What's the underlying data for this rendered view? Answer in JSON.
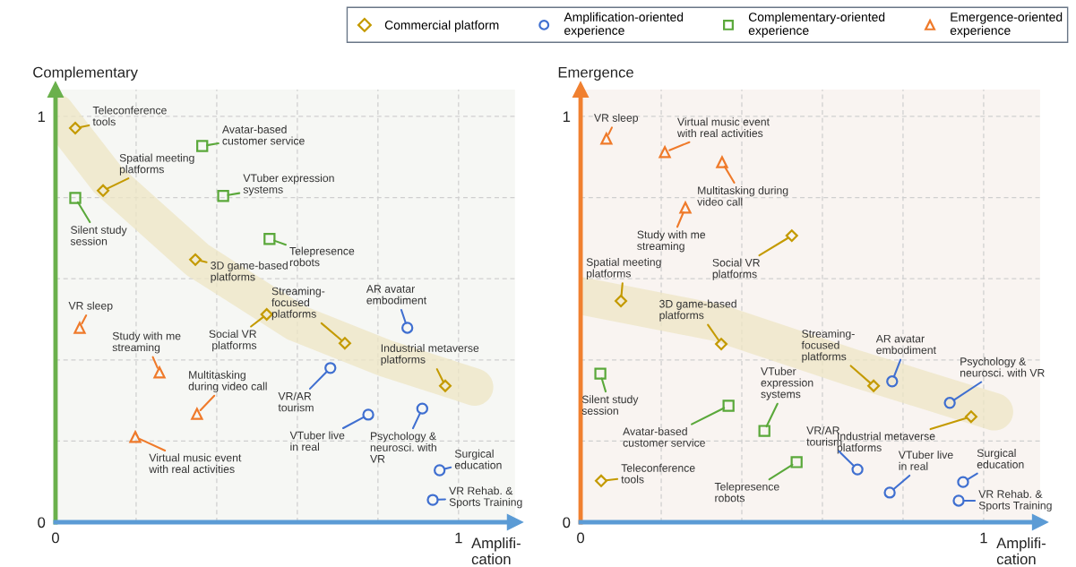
{
  "chart_data": [
    {
      "type": "scatter",
      "ylabel": "Complementary",
      "xlabel": "Amplifi-\ncation",
      "xlim": [
        0,
        1.14
      ],
      "ylim": [
        0,
        1.066
      ],
      "xticks": [
        0,
        {
          "value": 0.2,
          "label": null
        },
        {
          "value": 0.4,
          "label": null
        },
        {
          "value": 0.6,
          "label": null
        },
        {
          "value": 0.8,
          "label": null
        },
        1
      ],
      "yticks": [
        0,
        {
          "value": 0.2,
          "label": null
        },
        {
          "value": 0.4,
          "label": null
        },
        {
          "value": 0.6,
          "label": null
        },
        {
          "value": 0.8,
          "label": null
        },
        1
      ],
      "grid": true,
      "legend": "top right",
      "series": [
        {
          "type": "line",
          "color": "#ede5c4",
          "marker": "none",
          "x": [
            0,
            0.129,
            0.351,
            0.596,
            0.818,
            1.04
          ],
          "values": [
            1.01,
            0.845,
            0.647,
            0.492,
            0.404,
            0.333
          ]
        },
        {
          "name": "Commercial platform",
          "color": "#c49a00",
          "marker": "diamond",
          "x": [
            0.049,
            0.118,
            0.347,
            0.524,
            0.718,
            0.967
          ],
          "values": [
            0.971,
            0.817,
            0.647,
            0.512,
            0.441,
            0.336
          ]
        },
        {
          "name": "Amplification-oriented\nexperience",
          "color": "#3f6fd0",
          "marker": "circle",
          "x": [
            0.873,
            0.682,
            0.776,
            0.91,
            0.953,
            0.936
          ],
          "values": [
            0.479,
            0.38,
            0.265,
            0.28,
            0.128,
            0.055
          ]
        },
        {
          "name": "Complementary-oriented\nexperience",
          "color": "#5aa83a",
          "marker": "square",
          "x": [
            0.364,
            0.416,
            0.049,
            0.531
          ],
          "values": [
            0.927,
            0.804,
            0.799,
            0.698
          ]
        },
        {
          "name": "Emergence-oriented\nexperience",
          "color": "#ef7a2a",
          "marker": "triangle",
          "x": [
            0.06,
            0.258,
            0.351,
            0.198
          ],
          "values": [
            0.479,
            0.369,
            0.267,
            0.21
          ]
        }
      ],
      "annotations": [
        {
          "text": "Teleconference\ntools",
          "x": 0.049,
          "y": 0.971
        },
        {
          "text": "Spatial meeting\nplatforms",
          "x": 0.118,
          "y": 0.817
        },
        {
          "text": "3D game-based\nplatforms",
          "x": 0.347,
          "y": 0.647
        },
        {
          "text": "Social VR\nplatforms",
          "x": 0.524,
          "y": 0.512
        },
        {
          "text": "Streaming-\nfocused\nplatforms",
          "x": 0.718,
          "y": 0.441
        },
        {
          "text": "Industrial metaverse\nplatforms",
          "x": 0.967,
          "y": 0.336
        },
        {
          "text": "AR avatar\nembodiment",
          "x": 0.873,
          "y": 0.479
        },
        {
          "text": "VR/AR\ntourism",
          "x": 0.682,
          "y": 0.38
        },
        {
          "text": "VTuber live\nin real",
          "x": 0.776,
          "y": 0.265
        },
        {
          "text": "Psychology &\nneurosci. with\nVR",
          "x": 0.91,
          "y": 0.28
        },
        {
          "text": "Surgical\neducation",
          "x": 0.953,
          "y": 0.128
        },
        {
          "text": "VR Rehab. &\nSports Training",
          "x": 0.936,
          "y": 0.055
        },
        {
          "text": "Avatar-based\ncustomer service",
          "x": 0.364,
          "y": 0.927
        },
        {
          "text": "VTuber expression\nsystems",
          "x": 0.416,
          "y": 0.804
        },
        {
          "text": "Silent study\nsession",
          "x": 0.049,
          "y": 0.799
        },
        {
          "text": "Telepresence\nrobots",
          "x": 0.531,
          "y": 0.698
        },
        {
          "text": "VR sleep",
          "x": 0.06,
          "y": 0.479
        },
        {
          "text": "Study with me\nstreaming",
          "x": 0.258,
          "y": 0.369
        },
        {
          "text": "Multitasking\nduring video call",
          "x": 0.351,
          "y": 0.267
        },
        {
          "text": "Virtual music event\nwith real activities",
          "x": 0.198,
          "y": 0.21
        }
      ]
    },
    {
      "type": "scatter",
      "ylabel": "Emergence",
      "xlabel": "Amplifi-\ncation",
      "xlim": [
        0,
        1.14
      ],
      "ylim": [
        0,
        1.066
      ],
      "xticks": [
        0,
        {
          "value": 0.2,
          "label": null
        },
        {
          "value": 0.4,
          "label": null
        },
        {
          "value": 0.6,
          "label": null
        },
        {
          "value": 0.8,
          "label": null
        },
        1
      ],
      "yticks": [
        0,
        {
          "value": 0.2,
          "label": null
        },
        {
          "value": 0.4,
          "label": null
        },
        {
          "value": 0.6,
          "label": null
        },
        {
          "value": 0.8,
          "label": null
        },
        1
      ],
      "grid": true,
      "series": [
        {
          "type": "line",
          "color": "#ede5c4",
          "marker": "none",
          "x": [
            0,
            0.338,
            0.671,
            1.027
          ],
          "values": [
            0.558,
            0.492,
            0.382,
            0.272
          ]
        },
        {
          "color": "#c49a00",
          "marker": "diamond",
          "x": [
            0.524,
            0.1,
            0.349,
            0.727,
            0.969,
            0.051
          ],
          "values": [
            0.706,
            0.545,
            0.439,
            0.336,
            0.26,
            0.102
          ]
        },
        {
          "color": "#3f6fd0",
          "marker": "circle",
          "x": [
            0.773,
            0.916,
            0.687,
            0.767,
            0.949,
            0.938
          ],
          "values": [
            0.347,
            0.294,
            0.13,
            0.073,
            0.099,
            0.053
          ]
        },
        {
          "color": "#5aa83a",
          "marker": "square",
          "x": [
            0.049,
            0.367,
            0.456,
            0.536
          ],
          "values": [
            0.366,
            0.287,
            0.225,
            0.148
          ]
        },
        {
          "color": "#ef7a2a",
          "marker": "triangle",
          "x": [
            0.064,
            0.209,
            0.351,
            0.26
          ],
          "values": [
            0.945,
            0.912,
            0.887,
            0.775
          ]
        }
      ],
      "annotations": [
        {
          "text": "Social VR\nplatforms",
          "x": 0.524,
          "y": 0.706
        },
        {
          "text": "Spatial meeting\nplatforms",
          "x": 0.1,
          "y": 0.545
        },
        {
          "text": "3D game-based\nplatforms",
          "x": 0.349,
          "y": 0.439
        },
        {
          "text": "Streaming-\nfocused\nplatforms",
          "x": 0.727,
          "y": 0.336
        },
        {
          "text": "Industrial metaverse\nplatforms",
          "x": 0.969,
          "y": 0.26
        },
        {
          "text": "Teleconference\ntools",
          "x": 0.051,
          "y": 0.102
        },
        {
          "text": "AR avatar\nembodiment",
          "x": 0.773,
          "y": 0.347
        },
        {
          "text": "Psychology &\nneurosci. with VR",
          "x": 0.916,
          "y": 0.294
        },
        {
          "text": "VR/AR\ntourism",
          "x": 0.687,
          "y": 0.13
        },
        {
          "text": "VTuber live\nin real",
          "x": 0.767,
          "y": 0.073
        },
        {
          "text": "Surgical\neducation",
          "x": 0.949,
          "y": 0.099
        },
        {
          "text": "VR Rehab. &\nSports Training",
          "x": 0.938,
          "y": 0.053
        },
        {
          "text": "Silent study\nsession",
          "x": 0.049,
          "y": 0.366
        },
        {
          "text": "Avatar-based\ncustomer service",
          "x": 0.367,
          "y": 0.287
        },
        {
          "text": "VTuber\nexpression\nsystems",
          "x": 0.456,
          "y": 0.225
        },
        {
          "text": "Telepresence\nrobots",
          "x": 0.536,
          "y": 0.148
        },
        {
          "text": "VR sleep",
          "x": 0.064,
          "y": 0.945
        },
        {
          "text": "Virtual music event\nwith real activities",
          "x": 0.209,
          "y": 0.912
        },
        {
          "text": "Multitasking during\nvideo call",
          "x": 0.351,
          "y": 0.887
        },
        {
          "text": "Study with me\nstreaming",
          "x": 0.26,
          "y": 0.775
        }
      ]
    }
  ]
}
